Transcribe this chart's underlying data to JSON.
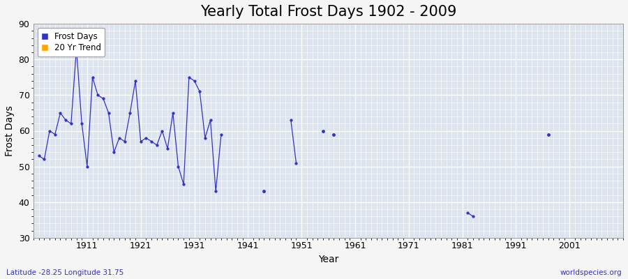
{
  "title": "Yearly Total Frost Days 1902 - 2009",
  "xlabel": "Year",
  "ylabel": "Frost Days",
  "xlim": [
    1901,
    2011
  ],
  "ylim": [
    30,
    90
  ],
  "yticks": [
    30,
    40,
    50,
    60,
    70,
    80,
    90
  ],
  "xticks": [
    1911,
    1921,
    1931,
    1941,
    1951,
    1961,
    1971,
    1981,
    1991,
    2001
  ],
  "frost_days_years": [
    1902,
    1903,
    1904,
    1905,
    1906,
    1907,
    1908,
    1909,
    1910,
    1911,
    1912,
    1913,
    1914,
    1915,
    1916,
    1917,
    1918,
    1919,
    1920,
    1921,
    1922,
    1923,
    1924,
    1925,
    1926,
    1927,
    1928,
    1929,
    1930,
    1931,
    1932,
    1933,
    1934,
    1935,
    1936,
    1944,
    1949,
    1950,
    1955,
    1957,
    1982,
    1983,
    1997
  ],
  "frost_days_values": [
    53,
    52,
    60,
    59,
    65,
    63,
    62,
    83,
    62,
    50,
    75,
    70,
    69,
    65,
    54,
    58,
    57,
    65,
    74,
    57,
    58,
    57,
    56,
    60,
    55,
    65,
    50,
    45,
    75,
    74,
    71,
    58,
    63,
    43,
    59,
    43,
    63,
    51,
    60,
    59,
    37,
    36,
    59
  ],
  "line_color": "#3333bb",
  "marker_color": "#3333bb",
  "bg_color": "#dde4ee",
  "grid_color": "#ffffff",
  "legend_frost_color": "#3333bb",
  "legend_trend_color": "#ffa500",
  "fig_bg_color": "#f5f5f5",
  "bottom_left_text": "Latitude -28.25 Longitude 31.75",
  "bottom_right_text": "worldspecies.org",
  "title_fontsize": 15,
  "label_fontsize": 10,
  "tick_fontsize": 9,
  "bottom_text_color": "#3333bb"
}
